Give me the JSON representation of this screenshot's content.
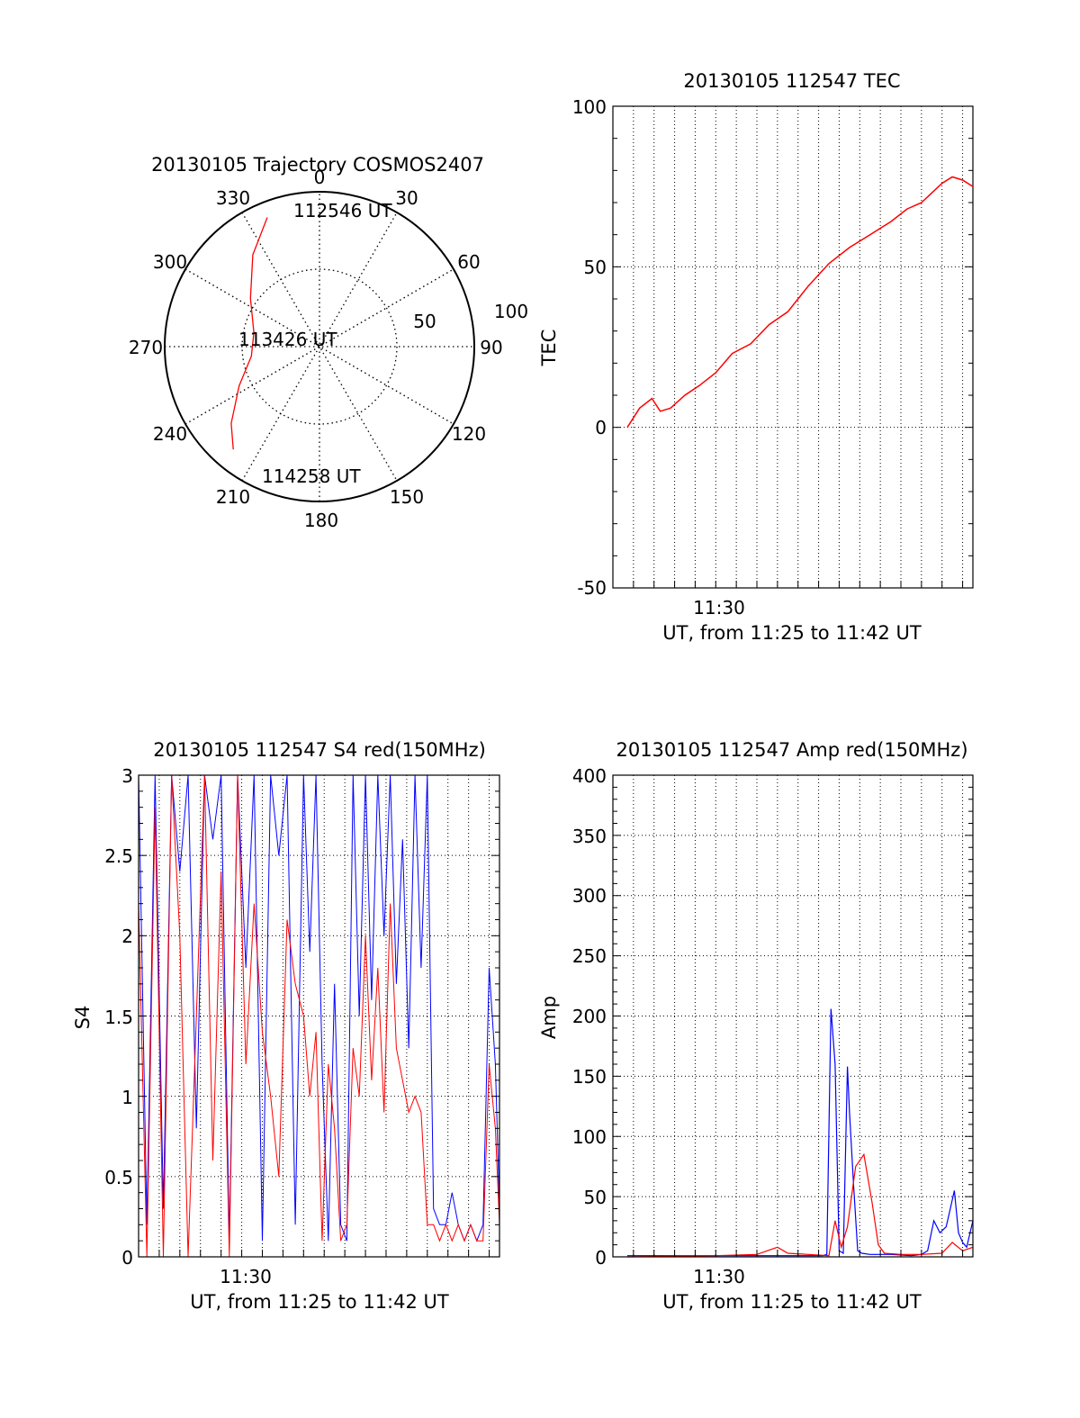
{
  "colors": {
    "red": "#ff0000",
    "blue": "#0000ff",
    "axis": "#000000",
    "grid": "#000000"
  },
  "chart_data": [
    {
      "id": "polar",
      "type": "polar",
      "title": "20130105 Trajectory COSMOS2407",
      "angle_labels": [
        "0",
        "30",
        "60",
        "90",
        "120",
        "150",
        "180",
        "210",
        "240",
        "270",
        "300",
        "330"
      ],
      "radial_labels": [
        "50",
        "100"
      ],
      "annotations": [
        {
          "text": "112546 UT",
          "az": 348,
          "el": 10
        },
        {
          "text": "113426 UT",
          "az": 262,
          "el": 62
        },
        {
          "text": "114258 UT",
          "az": 202,
          "el": 15
        }
      ],
      "track": [
        {
          "az": 338,
          "el": 9
        },
        {
          "az": 324,
          "el": 24
        },
        {
          "az": 305,
          "el": 41
        },
        {
          "az": 282,
          "el": 51
        },
        {
          "az": 262,
          "el": 50
        },
        {
          "az": 244,
          "el": 38
        },
        {
          "az": 229,
          "el": 22
        },
        {
          "az": 220,
          "el": 12
        }
      ],
      "series_color": "#ff0000"
    },
    {
      "id": "tec",
      "type": "line",
      "title": "20130105 112547 TEC",
      "xlabel": "UT, from 11:25 to 11:42 UT",
      "ylabel": "TEC",
      "xtick_label": "11:30",
      "ylim": [
        -50,
        100
      ],
      "yticks": [
        "-50",
        "0",
        "50",
        "100"
      ],
      "xlim_min": [
        25.0,
        42.5
      ],
      "series": [
        {
          "color": "#ff0000",
          "x": [
            25.7,
            26.3,
            26.9,
            27.3,
            27.8,
            28.5,
            29.2,
            30.0,
            30.8,
            31.7,
            32.6,
            33.5,
            34.5,
            35.5,
            36.5,
            37.5,
            38.5,
            39.3,
            40.0,
            40.5,
            41.0,
            41.5,
            42.0,
            42.5
          ],
          "y": [
            0,
            6,
            9,
            5,
            6,
            10,
            13,
            17,
            23,
            26,
            32,
            36,
            44,
            51,
            56,
            60,
            64,
            68,
            70,
            73,
            76,
            78,
            77,
            75
          ]
        }
      ]
    },
    {
      "id": "s4",
      "type": "line",
      "title": "20130105 112547 S4 red(150MHz)",
      "xlabel": "UT, from 11:25 to 11:42 UT",
      "ylabel": "S4",
      "xtick_label": "11:30",
      "ylim": [
        0,
        3
      ],
      "yticks": [
        "0",
        "0.5",
        "1",
        "1.5",
        "2",
        "2.5",
        "3"
      ],
      "xlim_min": [
        25.0,
        42.5
      ],
      "series": [
        {
          "color": "#0000ff",
          "x": [
            25.0,
            25.4,
            25.8,
            26.2,
            26.6,
            27.0,
            27.4,
            27.8,
            28.2,
            28.6,
            29.0,
            29.4,
            29.8,
            30.2,
            30.6,
            31.0,
            31.4,
            31.8,
            32.2,
            32.6,
            33.0,
            33.3,
            33.6,
            33.9,
            34.2,
            34.5,
            34.8,
            35.1,
            35.4,
            35.7,
            36.0,
            36.3,
            36.6,
            36.9,
            37.2,
            37.5,
            37.8,
            38.1,
            38.4,
            38.7,
            39.0,
            39.3,
            39.6,
            39.9,
            40.2,
            40.5,
            40.8,
            41.1,
            41.4,
            41.7,
            42.0,
            42.3,
            42.5
          ],
          "y": [
            3,
            0.2,
            3,
            0.3,
            3,
            2.4,
            3,
            0.8,
            3,
            2.6,
            3,
            0.1,
            3,
            1.8,
            3,
            0.1,
            3,
            2.5,
            3,
            0.2,
            3,
            1.9,
            3,
            1.2,
            0.1,
            1.7,
            0.2,
            0.1,
            3,
            1.5,
            3,
            1.6,
            3,
            2.0,
            3,
            1.7,
            2.6,
            1.3,
            3,
            1.8,
            3,
            0.3,
            0.2,
            0.2,
            0.4,
            0.2,
            0.1,
            0.2,
            0.1,
            0.2,
            1.8,
            1.2,
            0.3
          ]
        },
        {
          "color": "#ff0000",
          "x": [
            25.0,
            25.4,
            25.8,
            26.2,
            26.6,
            27.0,
            27.4,
            27.8,
            28.2,
            28.6,
            29.0,
            29.4,
            29.8,
            30.2,
            30.6,
            31.0,
            31.4,
            31.8,
            32.2,
            32.6,
            33.0,
            33.3,
            33.6,
            33.9,
            34.2,
            34.5,
            34.8,
            35.1,
            35.4,
            35.7,
            36.0,
            36.3,
            36.6,
            36.9,
            37.2,
            37.5,
            37.8,
            38.1,
            38.4,
            38.7,
            39.0,
            39.3,
            39.6,
            39.9,
            40.2,
            40.5,
            40.8,
            41.1,
            41.4,
            41.7,
            42.0,
            42.3,
            42.5
          ],
          "y": [
            2.2,
            0.0,
            2.8,
            0.0,
            3,
            2.0,
            0.0,
            1.5,
            3,
            0.6,
            2.4,
            0.0,
            3,
            1.2,
            2.2,
            1.4,
            1.0,
            0.5,
            2.1,
            1.7,
            1.5,
            1.0,
            1.4,
            0.1,
            1.2,
            0.8,
            0.1,
            0.2,
            1.3,
            1.0,
            2.0,
            1.1,
            1.8,
            0.9,
            2.2,
            1.3,
            1.1,
            0.9,
            1.0,
            0.9,
            0.2,
            0.2,
            0.1,
            0.2,
            0.1,
            0.2,
            0.1,
            0.2,
            0.1,
            0.1,
            1.2,
            0.8,
            0.2
          ]
        }
      ]
    },
    {
      "id": "amp",
      "type": "line",
      "title": "20130105 112547 Amp red(150MHz)",
      "xlabel": "UT, from 11:25 to 11:42 UT",
      "ylabel": "Amp",
      "xtick_label": "11:30",
      "ylim": [
        0,
        400
      ],
      "yticks": [
        "0",
        "50",
        "100",
        "150",
        "200",
        "250",
        "300",
        "350",
        "400"
      ],
      "xlim_min": [
        25.0,
        42.5
      ],
      "series": [
        {
          "color": "#0000ff",
          "x": [
            25.7,
            30.0,
            33.0,
            35.2,
            35.4,
            35.6,
            35.8,
            36.0,
            36.2,
            36.4,
            36.5,
            36.7,
            36.9,
            37.1,
            37.5,
            38.5,
            39.5,
            40.0,
            40.3,
            40.6,
            40.9,
            41.2,
            41.4,
            41.6,
            41.8,
            42.0,
            42.2,
            42.5
          ],
          "y": [
            1,
            1,
            1,
            1,
            2,
            206,
            160,
            5,
            3,
            158,
            120,
            60,
            5,
            3,
            2,
            2,
            1,
            2,
            5,
            30,
            20,
            25,
            40,
            55,
            20,
            12,
            8,
            30
          ]
        },
        {
          "color": "#ff0000",
          "x": [
            25.7,
            30.0,
            32.0,
            32.5,
            33.0,
            33.5,
            34.5,
            35.5,
            35.8,
            36.1,
            36.4,
            36.8,
            37.2,
            37.6,
            37.9,
            38.2,
            39.0,
            40.0,
            41.0,
            41.5,
            42.0,
            42.5
          ],
          "y": [
            0,
            1,
            2,
            5,
            8,
            3,
            2,
            1,
            30,
            8,
            25,
            75,
            85,
            45,
            10,
            3,
            2,
            2,
            3,
            12,
            5,
            8
          ]
        }
      ]
    }
  ]
}
